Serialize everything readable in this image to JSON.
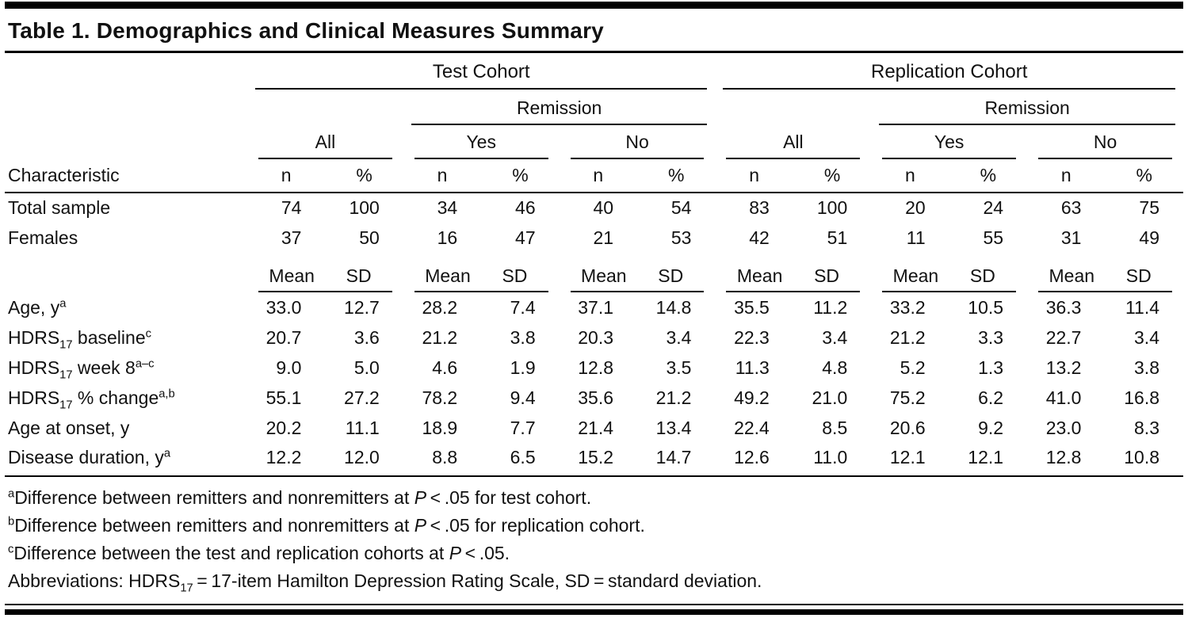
{
  "title": "Table 1. Demographics and Clinical Measures Summary",
  "table": {
    "cohorts": [
      {
        "label": "Test Cohort"
      },
      {
        "label": "Replication Cohort"
      }
    ],
    "remission_label": "Remission",
    "group_labels": [
      "All",
      "Yes",
      "No"
    ],
    "characteristic_label": "Characteristic",
    "count_header": [
      "n",
      "%"
    ],
    "stat_header": [
      "Mean",
      "SD"
    ],
    "count_rows": [
      {
        "label_parts": [
          {
            "t": "Total sample"
          }
        ],
        "values": [
          "74",
          "100",
          "34",
          "46",
          "40",
          "54",
          "83",
          "100",
          "20",
          "24",
          "63",
          "75"
        ]
      },
      {
        "label_parts": [
          {
            "t": "Females"
          }
        ],
        "values": [
          "37",
          "50",
          "16",
          "47",
          "21",
          "53",
          "42",
          "51",
          "11",
          "55",
          "31",
          "49"
        ]
      }
    ],
    "stat_rows": [
      {
        "label_parts": [
          {
            "t": "Age, y"
          },
          {
            "sup": "a"
          }
        ],
        "values": [
          "33.0",
          "12.7",
          "28.2",
          "7.4",
          "37.1",
          "14.8",
          "35.5",
          "11.2",
          "33.2",
          "10.5",
          "36.3",
          "11.4"
        ]
      },
      {
        "label_parts": [
          {
            "t": "HDRS"
          },
          {
            "sub": "17"
          },
          {
            "t": " baseline"
          },
          {
            "sup": "c"
          }
        ],
        "values": [
          "20.7",
          "3.6",
          "21.2",
          "3.8",
          "20.3",
          "3.4",
          "22.3",
          "3.4",
          "21.2",
          "3.3",
          "22.7",
          "3.4"
        ]
      },
      {
        "label_parts": [
          {
            "t": "HDRS"
          },
          {
            "sub": "17"
          },
          {
            "t": " week 8"
          },
          {
            "sup": "a–c"
          }
        ],
        "values": [
          "9.0",
          "5.0",
          "4.6",
          "1.9",
          "12.8",
          "3.5",
          "11.3",
          "4.8",
          "5.2",
          "1.3",
          "13.2",
          "3.8"
        ]
      },
      {
        "label_parts": [
          {
            "t": "HDRS"
          },
          {
            "sub": "17"
          },
          {
            "t": " % change"
          },
          {
            "sup": "a,b"
          }
        ],
        "values": [
          "55.1",
          "27.2",
          "78.2",
          "9.4",
          "35.6",
          "21.2",
          "49.2",
          "21.0",
          "75.2",
          "6.2",
          "41.0",
          "16.8"
        ]
      },
      {
        "label_parts": [
          {
            "t": "Age at onset, y"
          }
        ],
        "values": [
          "20.2",
          "11.1",
          "18.9",
          "7.7",
          "21.4",
          "13.4",
          "22.4",
          "8.5",
          "20.6",
          "9.2",
          "23.0",
          "8.3"
        ]
      },
      {
        "label_parts": [
          {
            "t": "Disease duration, y"
          },
          {
            "sup": "a"
          }
        ],
        "values": [
          "12.2",
          "12.0",
          "8.8",
          "6.5",
          "15.2",
          "14.7",
          "12.6",
          "11.0",
          "12.1",
          "12.1",
          "12.8",
          "10.8"
        ]
      }
    ],
    "footnotes": [
      {
        "parts": [
          {
            "sup": "a"
          },
          {
            "t": "Difference between remitters and nonremitters at "
          },
          {
            "i": "P"
          },
          {
            "t": " < .05 for test cohort."
          }
        ]
      },
      {
        "parts": [
          {
            "sup": "b"
          },
          {
            "t": "Difference between remitters and nonremitters at "
          },
          {
            "i": "P"
          },
          {
            "t": " < .05 for replication cohort."
          }
        ]
      },
      {
        "parts": [
          {
            "sup": "c"
          },
          {
            "t": "Difference between the test and replication cohorts at "
          },
          {
            "i": "P"
          },
          {
            "t": " < .05."
          }
        ]
      },
      {
        "parts": [
          {
            "t": "Abbreviations: HDRS"
          },
          {
            "sub": "17"
          },
          {
            "t": " = 17-item Hamilton Depression Rating Scale, SD = standard deviation."
          }
        ]
      }
    ]
  }
}
